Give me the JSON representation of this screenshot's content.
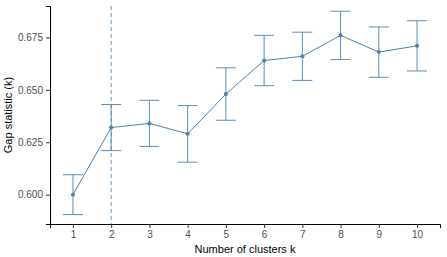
{
  "chart_data": {
    "type": "line",
    "x_label": "Number of clusters k",
    "y_label": "Gap statistic (k)",
    "x": [
      1,
      2,
      3,
      4,
      5,
      6,
      7,
      8,
      9,
      10
    ],
    "series": [
      {
        "color": "#4682b4",
        "marker": "circle",
        "line_style": "solid",
        "values": [
          0.6,
          0.632,
          0.634,
          0.629,
          0.648,
          0.664,
          0.666,
          0.676,
          0.668,
          0.671
        ],
        "errors": [
          0.0095,
          0.011,
          0.011,
          0.0135,
          0.0125,
          0.012,
          0.0115,
          0.0115,
          0.012,
          0.012
        ]
      }
    ],
    "xlim": [
      0.4,
      10.6
    ],
    "xticks": [
      1,
      2,
      3,
      4,
      5,
      6,
      7,
      8,
      9,
      10
    ],
    "ylim": [
      0.586,
      0.69
    ],
    "yticks": [
      {
        "value": 0.6,
        "label": "0.600"
      },
      {
        "value": 0.625,
        "label": "0.625"
      },
      {
        "value": 0.65,
        "label": "0.650"
      },
      {
        "value": 0.675,
        "label": "0.675"
      }
    ],
    "reference_line": {
      "x": 2,
      "color": "#4682b4",
      "line_style": "dashed"
    },
    "grid": false
  }
}
